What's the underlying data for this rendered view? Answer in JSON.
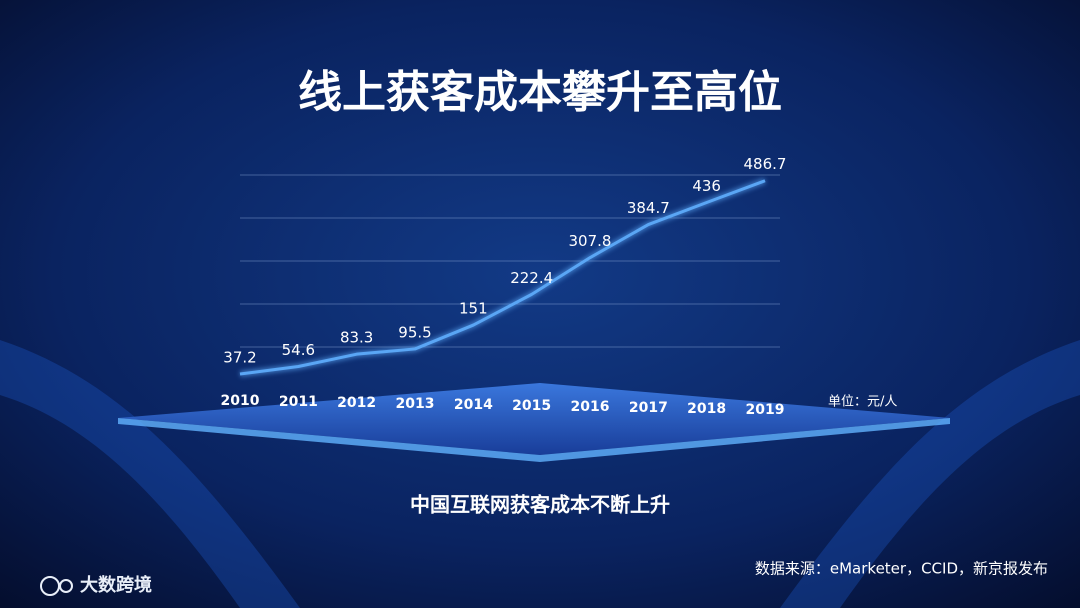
{
  "chart_data": {
    "type": "line",
    "title": "线上获客成本攀升至高位",
    "subtitle": "中国互联网获客成本不断上升",
    "unit": "单位：元/人",
    "source": "数据来源：eMarketer，CCID，新京报发布",
    "logo": "大数跨境",
    "categories": [
      "2010",
      "2011",
      "2012",
      "2013",
      "2014",
      "2015",
      "2016",
      "2017",
      "2018",
      "2019"
    ],
    "values": [
      37.2,
      54.6,
      83.3,
      95.5,
      151,
      222.4,
      307.8,
      384.7,
      436,
      486.7
    ],
    "color": "#5aa6f5",
    "ylim": [
      0,
      500
    ],
    "yticks": [
      100,
      200,
      300,
      400,
      500
    ],
    "grid": true
  }
}
